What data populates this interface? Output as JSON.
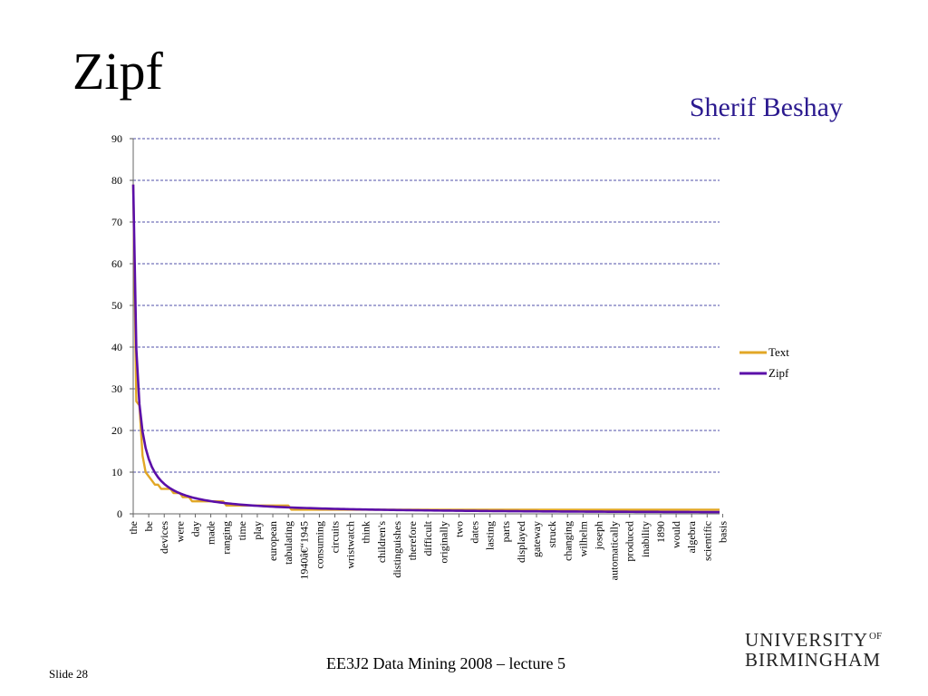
{
  "slide": {
    "title": "Zipf",
    "author": "Sherif Beshay",
    "footer": "EE3J2 Data Mining 2008 – lecture 5",
    "slide_number": "Slide 28",
    "logo": {
      "line1": "UNIVERSITY",
      "of": "OF",
      "line2": "BIRMINGHAM"
    }
  },
  "colors": {
    "text_series": "#E2A726",
    "zipf_series": "#5B0FA8",
    "grid": "#1a1a8c",
    "title_author": "#2b1a8f"
  },
  "chart_data": {
    "type": "line",
    "title": "",
    "xlabel": "",
    "ylabel": "",
    "ylim": [
      0,
      90
    ],
    "yticks": [
      0,
      10,
      20,
      30,
      40,
      50,
      60,
      70,
      80,
      90
    ],
    "grid": true,
    "legend_position": "right",
    "n_points": 190,
    "categories": [
      "the",
      "be",
      "devices",
      "were",
      "day",
      "made",
      "ranging",
      "time",
      "play",
      "european",
      "tabulating",
      "1940â€“1945",
      "consuming",
      "circuits",
      "wristwatch",
      "think",
      "children's",
      "distinguishes",
      "therefore",
      "difficult",
      "originally",
      "two",
      "dates",
      "lasting",
      "parts",
      "displayed",
      "gateway",
      "struck",
      "changing",
      "wilhelm",
      "joseph",
      "automatically",
      "produced",
      "inability",
      "1890",
      "would",
      "algebra",
      "scientific",
      "basis"
    ],
    "series": [
      {
        "name": "Text",
        "color": "#E2A726",
        "rank_values": [
          [
            1,
            79
          ],
          [
            2,
            27
          ],
          [
            3,
            26
          ],
          [
            4,
            14
          ],
          [
            5,
            10
          ],
          [
            6,
            9
          ],
          [
            7,
            8
          ],
          [
            8,
            7
          ],
          [
            9,
            7
          ],
          [
            10,
            6
          ],
          [
            13,
            6
          ],
          [
            14,
            5
          ],
          [
            16,
            5
          ],
          [
            17,
            4
          ],
          [
            19,
            4
          ],
          [
            20,
            3
          ],
          [
            21,
            3
          ],
          [
            22,
            3
          ],
          [
            30,
            3
          ],
          [
            31,
            2
          ],
          [
            50,
            2
          ],
          [
            51,
            2
          ],
          [
            52,
            1
          ],
          [
            190,
            1
          ]
        ]
      },
      {
        "name": "Zipf",
        "color": "#5B0FA8",
        "formula": "79 / rank"
      }
    ]
  }
}
